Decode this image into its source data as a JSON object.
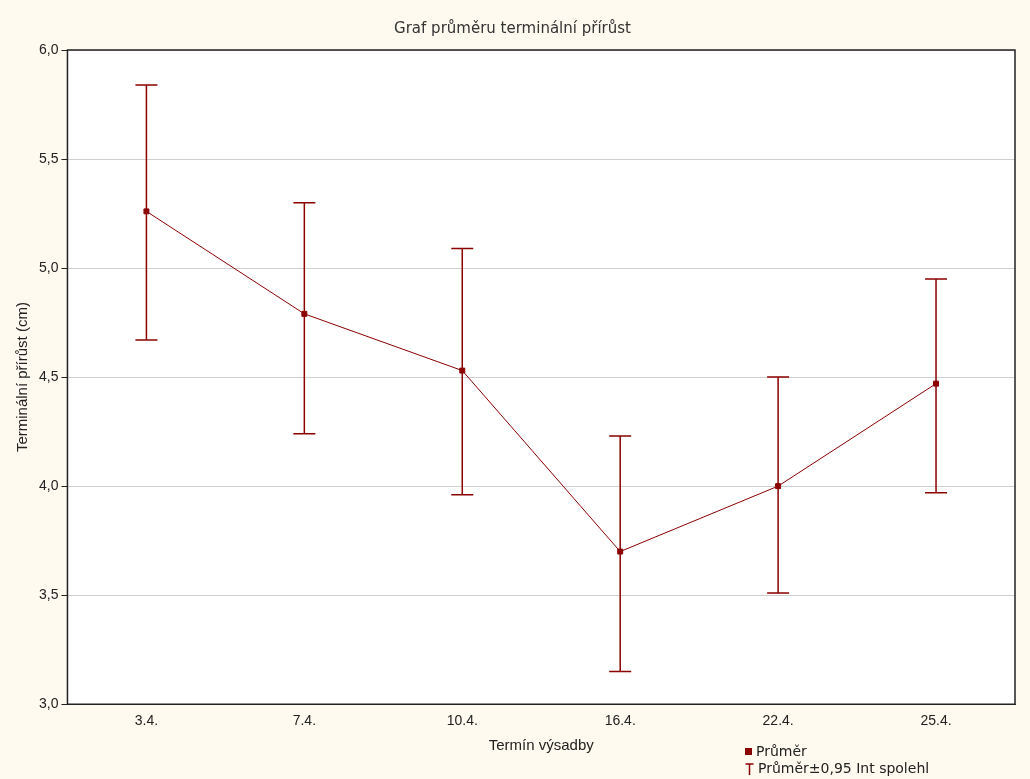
{
  "chart_data": {
    "type": "line",
    "title": "Graf průměru terminální přírůst",
    "xlabel": "Termín výsadby",
    "ylabel": "Terminální přírůst (cm)",
    "categories": [
      "3.4.",
      "7.4.",
      "10.4.",
      "16.4.",
      "22.4.",
      "25.4."
    ],
    "series": [
      {
        "name": "Průměr",
        "color": "#8b0000",
        "values": [
          5.26,
          4.79,
          4.53,
          3.7,
          4.0,
          4.47
        ],
        "errors": [
          [
            4.67,
            5.84
          ],
          [
            4.24,
            5.3
          ],
          [
            3.96,
            5.09
          ],
          [
            3.15,
            4.23
          ],
          [
            3.51,
            4.5
          ],
          [
            3.97,
            4.95
          ]
        ]
      }
    ],
    "ylim": [
      3,
      6
    ],
    "yticks": [
      {
        "value": 3,
        "label": "3,0"
      },
      {
        "value": 3.5,
        "label": "3,5"
      },
      {
        "value": 4,
        "label": "4,0"
      },
      {
        "value": 4.5,
        "label": "4,5"
      },
      {
        "value": 5,
        "label": "5,0"
      },
      {
        "value": 5.5,
        "label": "5,5"
      },
      {
        "value": 6,
        "label": "6,0"
      }
    ],
    "grid": "y",
    "legend": "bottom right",
    "marker": "square",
    "line_style": "solid",
    "annotations": [
      "Průměr±0,95 Int spolehl"
    ]
  }
}
